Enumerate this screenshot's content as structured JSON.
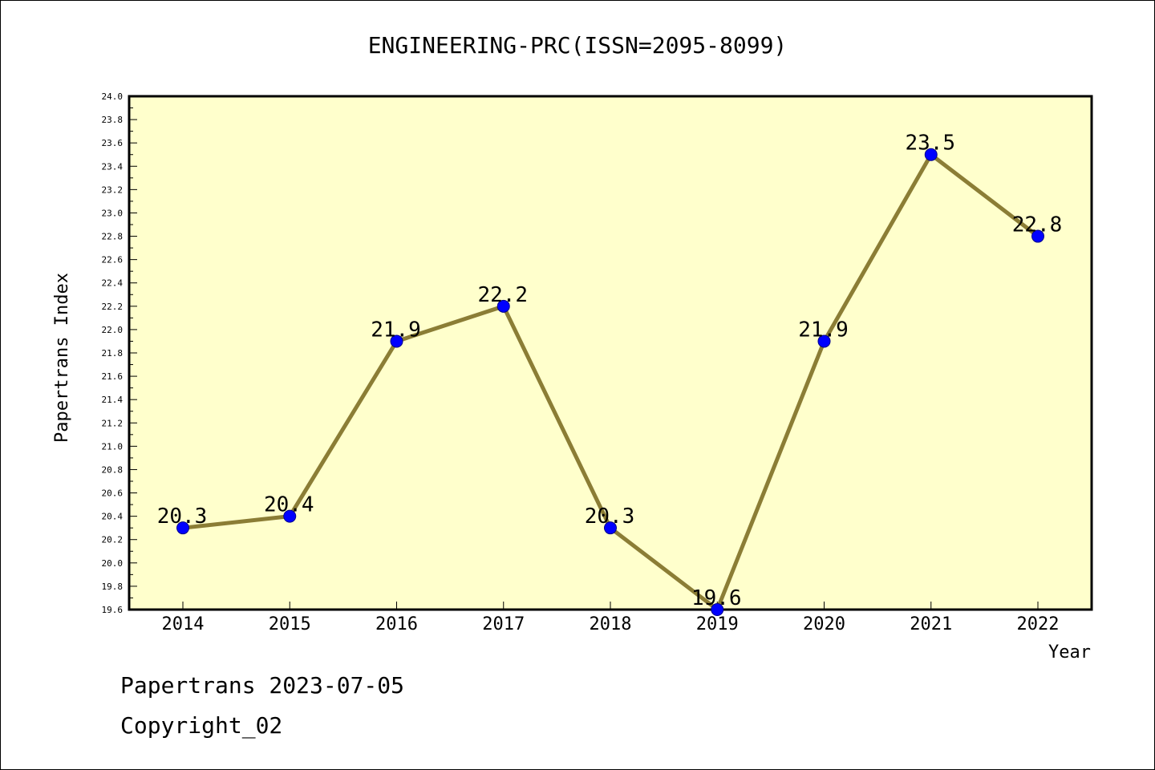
{
  "chart_data": {
    "type": "line",
    "title": "ENGINEERING-PRC(ISSN=2095-8099)",
    "xlabel": "Year",
    "ylabel": "Papertrans Index",
    "categories": [
      "2014",
      "2015",
      "2016",
      "2017",
      "2018",
      "2019",
      "2020",
      "2021",
      "2022"
    ],
    "series": [
      {
        "values": [
          20.3,
          20.4,
          21.9,
          22.2,
          20.3,
          19.6,
          21.9,
          23.5,
          22.8
        ]
      }
    ],
    "data_labels": [
      "20.3",
      "20.4",
      "21.9",
      "22.2",
      "20.3",
      "19.6",
      "21.9",
      "23.5",
      "22.8"
    ],
    "ylim": [
      19.6,
      24.0
    ],
    "yticks": [
      "19.6",
      "19.8",
      "20.0",
      "20.2",
      "20.4",
      "20.6",
      "20.8",
      "21.0",
      "21.2",
      "21.4",
      "21.6",
      "21.8",
      "22.0",
      "22.2",
      "22.4",
      "22.6",
      "22.8",
      "23.0",
      "23.2",
      "23.4",
      "23.6",
      "23.8",
      "24.0"
    ],
    "grid": false,
    "colors": {
      "plot_bg": "#ffffcc",
      "line": "#8b7d35",
      "marker": "#0000ff"
    }
  },
  "footer": {
    "line1": "Papertrans 2023-07-05",
    "line2": "Copyright_02"
  }
}
